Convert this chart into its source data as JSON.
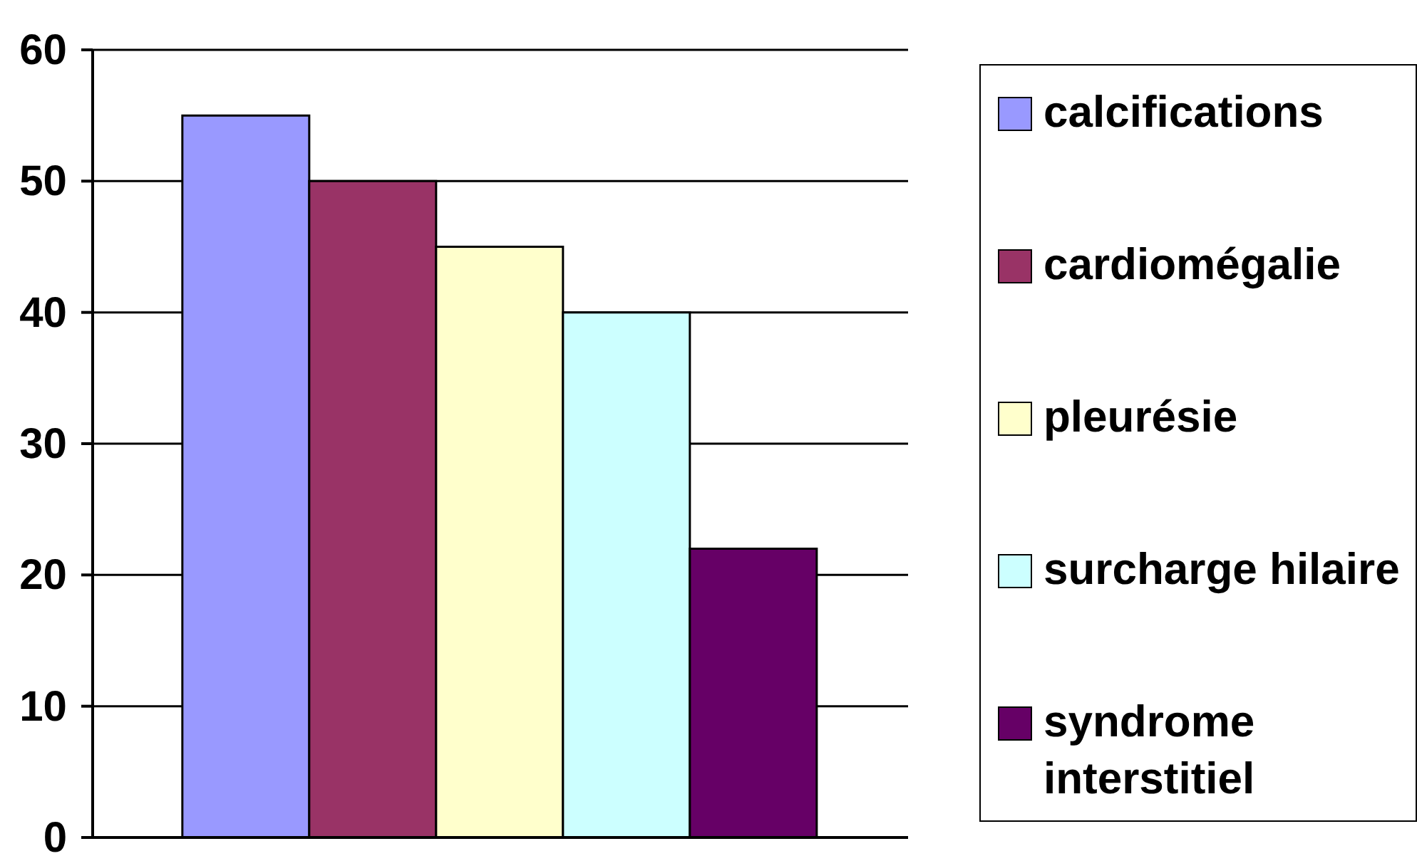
{
  "chart_data": {
    "type": "bar",
    "categories": [
      null
    ],
    "series": [
      {
        "name": "calcifications",
        "color": "#9999ff",
        "values": [
          55
        ]
      },
      {
        "name": "cardiomégalie",
        "color": "#993366",
        "values": [
          50
        ]
      },
      {
        "name": "pleurésie",
        "color": "#ffffcc",
        "values": [
          45
        ]
      },
      {
        "name": "surcharge hilaire",
        "color": "#ccffff",
        "values": [
          40
        ]
      },
      {
        "name": "syndrome interstitiel",
        "color": "#660066",
        "values": [
          22
        ]
      }
    ],
    "ylim": [
      0,
      60
    ],
    "yticks": [
      0,
      10,
      20,
      30,
      40,
      50,
      60
    ],
    "grid": "y",
    "legend": "right",
    "tick_labels": "y"
  }
}
